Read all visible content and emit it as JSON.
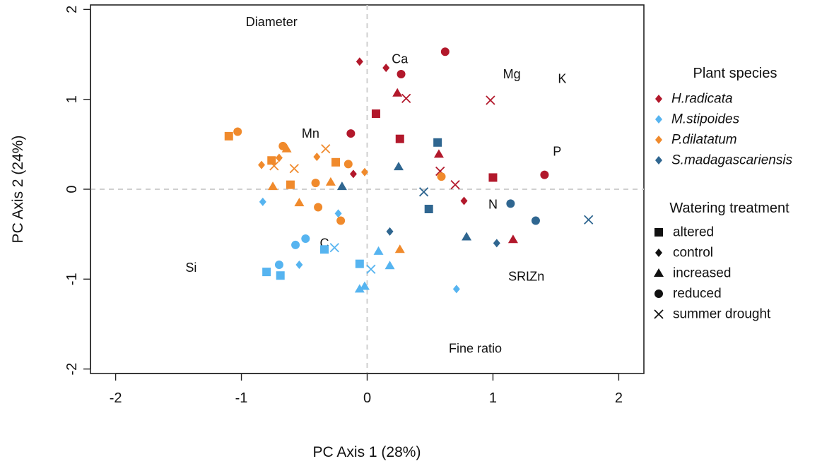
{
  "colors": {
    "H.radicata": "#b2182b",
    "M.stipoides": "#56b4f0",
    "P.dilatatum": "#f08a2c",
    "S.madagascariensis": "#2f6690",
    "legend_symbol": "#111111"
  },
  "chart_data": {
    "type": "scatter",
    "xlabel": "PC Axis 1 (28%)",
    "ylabel": "PC Axis 2 (24%)",
    "xlim": [
      -2.2,
      2.2
    ],
    "ylim": [
      -2.05,
      2.05
    ],
    "xticks": [
      -2,
      -1,
      0,
      1,
      2
    ],
    "yticks": [
      -2,
      -1,
      0,
      1,
      2
    ],
    "xtick_labels": [
      "-2",
      "-1",
      "0",
      "1",
      "2"
    ],
    "ytick_labels": [
      "-2",
      "-1",
      "0",
      "1",
      "2"
    ],
    "reference_lines": {
      "x": 0,
      "y": 0,
      "style": "dashed grey"
    },
    "loadings": [
      {
        "label": "Diameter",
        "x": -0.76,
        "y": 1.86
      },
      {
        "label": "Ca",
        "x": 0.26,
        "y": 1.45
      },
      {
        "label": "Mg",
        "x": 1.15,
        "y": 1.28
      },
      {
        "label": "K",
        "x": 1.55,
        "y": 1.23
      },
      {
        "label": "Mn",
        "x": -0.45,
        "y": 0.62
      },
      {
        "label": "P",
        "x": 1.51,
        "y": 0.42
      },
      {
        "label": "N",
        "x": 1.0,
        "y": -0.17
      },
      {
        "label": "C",
        "x": -0.34,
        "y": -0.6
      },
      {
        "label": "Si",
        "x": -1.4,
        "y": -0.87
      },
      {
        "label": "SRL",
        "x": 1.22,
        "y": -0.97
      },
      {
        "label": "Zn",
        "x": 1.35,
        "y": -0.97
      },
      {
        "label": "Fine ratio",
        "x": 0.86,
        "y": -1.77
      }
    ],
    "legend": {
      "species_title": "Plant species",
      "species": [
        "H.radicata",
        "M.stipoides",
        "P.dilatatum",
        "S.madagascariensis"
      ],
      "treatment_title": "Watering treatment",
      "treatments": [
        {
          "name": "altered",
          "marker": "square"
        },
        {
          "name": "control",
          "marker": "diamond"
        },
        {
          "name": "increased",
          "marker": "triangle"
        },
        {
          "name": "reduced",
          "marker": "circle"
        },
        {
          "name": "summer drought",
          "marker": "cross"
        }
      ]
    },
    "series": [
      {
        "name": "H.radicata",
        "points": [
          {
            "x": -0.06,
            "y": 1.42,
            "t": "control"
          },
          {
            "x": 0.15,
            "y": 1.35,
            "t": "control"
          },
          {
            "x": 0.27,
            "y": 1.28,
            "t": "reduced"
          },
          {
            "x": 0.62,
            "y": 1.53,
            "t": "reduced"
          },
          {
            "x": 0.24,
            "y": 1.07,
            "t": "increased"
          },
          {
            "x": 0.31,
            "y": 1.01,
            "t": "summer drought"
          },
          {
            "x": 0.98,
            "y": 0.99,
            "t": "summer drought"
          },
          {
            "x": 0.07,
            "y": 0.84,
            "t": "altered"
          },
          {
            "x": -0.13,
            "y": 0.62,
            "t": "reduced"
          },
          {
            "x": 0.26,
            "y": 0.56,
            "t": "altered"
          },
          {
            "x": 0.57,
            "y": 0.39,
            "t": "increased"
          },
          {
            "x": 0.58,
            "y": 0.2,
            "t": "summer drought"
          },
          {
            "x": -0.11,
            "y": 0.17,
            "t": "control"
          },
          {
            "x": 0.7,
            "y": 0.05,
            "t": "summer drought"
          },
          {
            "x": 1.0,
            "y": 0.13,
            "t": "altered"
          },
          {
            "x": 1.41,
            "y": 0.16,
            "t": "reduced"
          },
          {
            "x": 0.77,
            "y": -0.13,
            "t": "control"
          },
          {
            "x": 1.16,
            "y": -0.56,
            "t": "increased"
          }
        ]
      },
      {
        "name": "M.stipoides",
        "points": [
          {
            "x": -0.83,
            "y": -0.14,
            "t": "control"
          },
          {
            "x": -0.23,
            "y": -0.27,
            "t": "control"
          },
          {
            "x": -0.49,
            "y": -0.55,
            "t": "reduced"
          },
          {
            "x": -0.57,
            "y": -0.62,
            "t": "reduced"
          },
          {
            "x": -0.34,
            "y": -0.67,
            "t": "altered"
          },
          {
            "x": -0.26,
            "y": -0.65,
            "t": "summer drought"
          },
          {
            "x": -0.54,
            "y": -0.84,
            "t": "control"
          },
          {
            "x": -0.7,
            "y": -0.84,
            "t": "reduced"
          },
          {
            "x": -0.8,
            "y": -0.92,
            "t": "altered"
          },
          {
            "x": -0.69,
            "y": -0.96,
            "t": "altered"
          },
          {
            "x": -0.06,
            "y": -0.83,
            "t": "altered"
          },
          {
            "x": 0.09,
            "y": -0.69,
            "t": "increased"
          },
          {
            "x": 0.18,
            "y": -0.85,
            "t": "increased"
          },
          {
            "x": 0.03,
            "y": -0.89,
            "t": "summer drought"
          },
          {
            "x": -0.06,
            "y": -1.11,
            "t": "increased"
          },
          {
            "x": -0.02,
            "y": -1.08,
            "t": "increased"
          },
          {
            "x": 0.71,
            "y": -1.11,
            "t": "control"
          }
        ]
      },
      {
        "name": "P.dilatatum",
        "points": [
          {
            "x": -1.1,
            "y": 0.59,
            "t": "altered"
          },
          {
            "x": -1.03,
            "y": 0.64,
            "t": "reduced"
          },
          {
            "x": -0.84,
            "y": 0.27,
            "t": "control"
          },
          {
            "x": -0.76,
            "y": 0.32,
            "t": "altered"
          },
          {
            "x": -0.74,
            "y": 0.26,
            "t": "summer drought"
          },
          {
            "x": -0.7,
            "y": 0.35,
            "t": "control"
          },
          {
            "x": -0.67,
            "y": 0.48,
            "t": "reduced"
          },
          {
            "x": -0.64,
            "y": 0.45,
            "t": "increased"
          },
          {
            "x": -0.58,
            "y": 0.23,
            "t": "summer drought"
          },
          {
            "x": -0.4,
            "y": 0.36,
            "t": "control"
          },
          {
            "x": -0.33,
            "y": 0.45,
            "t": "summer drought"
          },
          {
            "x": -0.25,
            "y": 0.3,
            "t": "altered"
          },
          {
            "x": -0.15,
            "y": 0.28,
            "t": "reduced"
          },
          {
            "x": -0.02,
            "y": 0.19,
            "t": "control"
          },
          {
            "x": -0.75,
            "y": 0.03,
            "t": "increased"
          },
          {
            "x": -0.61,
            "y": 0.05,
            "t": "altered"
          },
          {
            "x": -0.41,
            "y": 0.07,
            "t": "reduced"
          },
          {
            "x": -0.29,
            "y": 0.08,
            "t": "increased"
          },
          {
            "x": -0.54,
            "y": -0.15,
            "t": "increased"
          },
          {
            "x": -0.39,
            "y": -0.2,
            "t": "reduced"
          },
          {
            "x": -0.21,
            "y": -0.35,
            "t": "reduced"
          },
          {
            "x": 0.59,
            "y": 0.14,
            "t": "reduced"
          },
          {
            "x": 0.26,
            "y": -0.67,
            "t": "increased"
          }
        ]
      },
      {
        "name": "S.madagascariensis",
        "points": [
          {
            "x": 0.56,
            "y": 0.52,
            "t": "altered"
          },
          {
            "x": 0.25,
            "y": 0.25,
            "t": "increased"
          },
          {
            "x": -0.2,
            "y": 0.03,
            "t": "increased"
          },
          {
            "x": 0.45,
            "y": -0.03,
            "t": "summer drought"
          },
          {
            "x": 0.49,
            "y": -0.22,
            "t": "altered"
          },
          {
            "x": 0.18,
            "y": -0.47,
            "t": "control"
          },
          {
            "x": 0.79,
            "y": -0.53,
            "t": "increased"
          },
          {
            "x": 1.14,
            "y": -0.16,
            "t": "reduced"
          },
          {
            "x": 1.34,
            "y": -0.35,
            "t": "reduced"
          },
          {
            "x": 1.03,
            "y": -0.6,
            "t": "control"
          },
          {
            "x": 1.76,
            "y": -0.34,
            "t": "summer drought"
          }
        ]
      }
    ]
  }
}
